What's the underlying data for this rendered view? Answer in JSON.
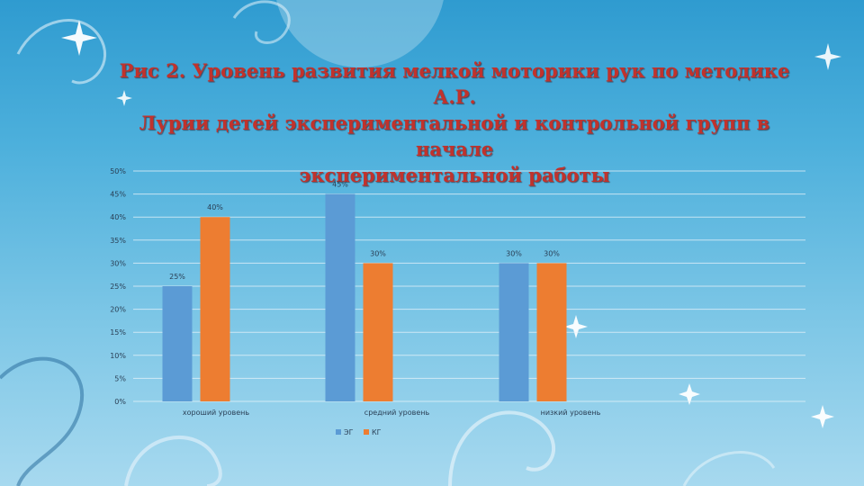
{
  "title_lines": [
    "Рис 2. Уровень развития мелкой моторики рук по методике А.Р.",
    "Лурии детей экспериментальной и контрольной групп в начале",
    "экспериментальной работы"
  ],
  "colors": {
    "series_eg": "#5b9bd5",
    "series_kg": "#ed7d31",
    "title": "#c1322c",
    "gridline": "#e8f3fa"
  },
  "chart_data": {
    "type": "bar",
    "categories": [
      "хороший уровень",
      "средний уровень",
      "низкий уровень"
    ],
    "series": [
      {
        "name": "ЭГ",
        "values": [
          25,
          45,
          30
        ]
      },
      {
        "name": "КГ",
        "values": [
          40,
          30,
          30
        ]
      }
    ],
    "ylim": [
      0,
      50
    ],
    "ytick_step": 5,
    "ytick_labels": [
      "0%",
      "5%",
      "10%",
      "15%",
      "20%",
      "25%",
      "30%",
      "35%",
      "40%",
      "45%",
      "50%"
    ],
    "data_labels": [
      [
        "25%",
        "45%",
        "30%"
      ],
      [
        "40%",
        "30%",
        "30%"
      ]
    ],
    "grid": true,
    "legend_position": "bottom"
  }
}
